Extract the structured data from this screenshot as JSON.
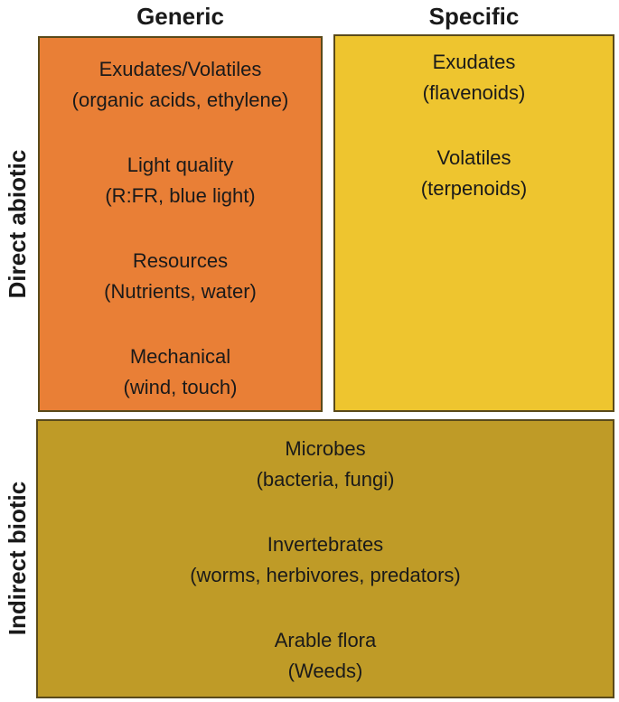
{
  "columns": {
    "generic": "Generic",
    "specific": "Specific"
  },
  "rows": {
    "direct": "Direct abiotic",
    "indirect": "Indirect biotic"
  },
  "generic_items": [
    {
      "line1": "Exudates/Volatiles",
      "line2": "(organic acids, ethylene)"
    },
    {
      "line1": "Light quality",
      "line2": "(R:FR, blue light)"
    },
    {
      "line1": "Resources",
      "line2": "(Nutrients, water)"
    },
    {
      "line1": "Mechanical",
      "line2": "(wind, touch)"
    }
  ],
  "specific_items": [
    {
      "line1": "Exudates",
      "line2": "(flavenoids)"
    },
    {
      "line1": "Volatiles",
      "line2": "(terpenoids)"
    }
  ],
  "biotic_items": [
    {
      "line1": "Microbes",
      "line2": "(bacteria, fungi)"
    },
    {
      "line1": "Invertebrates",
      "line2": "(worms, herbivores, predators)"
    },
    {
      "line1": "Arable flora",
      "line2": "(Weeds)"
    }
  ],
  "colors": {
    "generic_box": "#e97f36",
    "specific_box": "#eec52f",
    "biotic_box": "#bf9b27",
    "border": "#5a4a1a"
  }
}
